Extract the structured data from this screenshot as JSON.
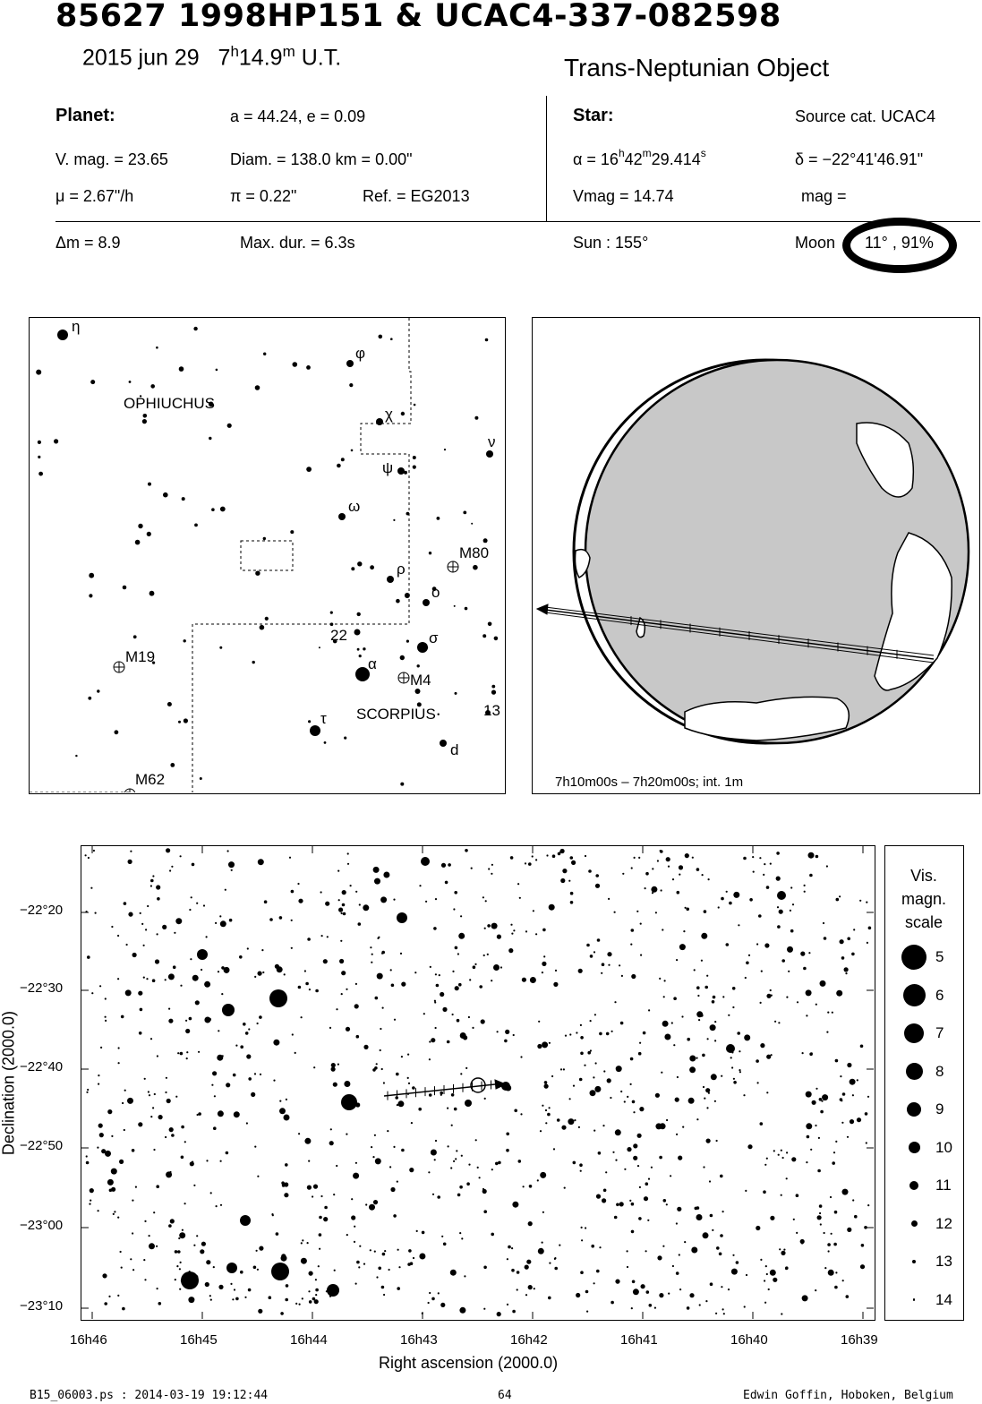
{
  "header": {
    "title": "85627 1998HP151  &  UCAC4-337-082598",
    "date": "2015 jun 29",
    "time_h": "7",
    "time_h_unit": "h",
    "time_m": "14.9",
    "time_m_unit": "m",
    "time_suffix": "U.T.",
    "object_type": "Trans-Neptunian Object"
  },
  "planet": {
    "heading": "Planet:",
    "orbit": "a = 44.24, e = 0.09",
    "vmag": "V. mag. = 23.65",
    "diam": "Diam. = 138.0 km = 0.00\"",
    "mu": "μ =  2.67\"/h",
    "pi": "π =  0.22\"",
    "ref": "Ref. = EG2013"
  },
  "star": {
    "heading": "Star:",
    "source": "Source cat.  UCAC4",
    "ra_prefix": "α = 16",
    "ra_h": "h",
    "ra_mid": "42",
    "ra_m": "m",
    "ra_sec": "29.414",
    "ra_s": "s",
    "dec": "δ = −22°41'46.91\"",
    "vmag": "Vmag = 14.74",
    "mag": "mag ="
  },
  "event": {
    "dm": "Δm = 8.9",
    "maxdur": "Max. dur. = 6.3s",
    "sun": "Sun : 155°",
    "moon_label": "Moon",
    "moon_value": "11° , 91%"
  },
  "finder": {
    "constellations": [
      "OPHIUCHUS",
      "SCORPIUS"
    ],
    "labels": {
      "eta": "η",
      "phi": "φ",
      "chi": "χ",
      "nu": "ν",
      "psi": "ψ",
      "omega": "ω",
      "rho": "ρ",
      "omicron": "ο",
      "sigma": "σ",
      "alpha": "α",
      "tau": "τ",
      "d": "d",
      "n13": "13",
      "n22": "22",
      "M80": "M80",
      "M19": "M19",
      "M4": "M4",
      "M62": "M62"
    }
  },
  "globe": {
    "caption": "7h10m00s –  7h20m00s; int.  1m"
  },
  "chart_data": {
    "type": "scatter",
    "xlabel": "Right ascension (2000.0)",
    "ylabel": "Declination (2000.0)",
    "x_ticks": [
      "16h46",
      "16h45",
      "16h44",
      "16h43",
      "16h42",
      "16h41",
      "16h40",
      "16h39"
    ],
    "y_ticks": [
      "−22°20",
      "−22°30",
      "−22°40",
      "−22°50",
      "−23°00",
      "−23°10"
    ],
    "target": {
      "ra": "16h42m29.414s",
      "dec": "−22°41'46.91\""
    },
    "legend": {
      "title_lines": [
        "Vis.",
        "magn.",
        "scale"
      ],
      "magnitudes": [
        "5",
        "6",
        "7",
        "8",
        "9",
        "10",
        "11",
        "12",
        "13",
        "14"
      ]
    }
  },
  "footer": {
    "left": "B15_06003.ps : 2014-03-19 19:12:44",
    "center": "64",
    "right": "Edwin Goffin, Hoboken, Belgium"
  }
}
